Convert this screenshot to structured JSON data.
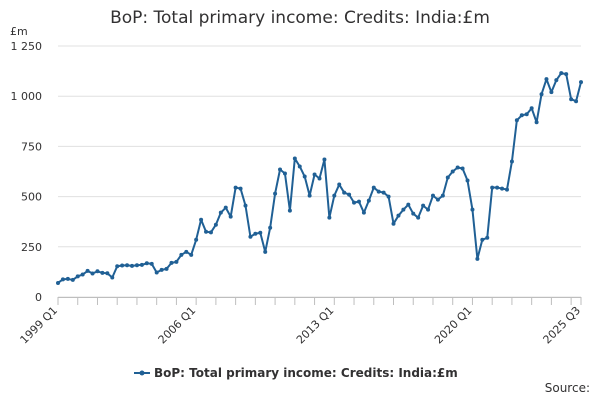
{
  "chart_data": {
    "type": "line",
    "title": "BoP: Total primary income: Credits: India:£m",
    "unit_label": "£m",
    "source_label": "Source:",
    "xlabel": "",
    "ylabel": "",
    "ylim": [
      0,
      1250
    ],
    "yticks": [
      0,
      250,
      500,
      750,
      1000,
      1250
    ],
    "ytick_labels": [
      "0",
      "250",
      "500",
      "750",
      "1 000",
      "1 250"
    ],
    "xtick_labels": [
      "1999 Q1",
      "2006 Q1",
      "2013 Q1",
      "2020 Q1",
      "2025 Q3"
    ],
    "xtick_positions": [
      "1999 Q1",
      "2006 Q1",
      "2013 Q1",
      "2020 Q1",
      "2025 Q3"
    ],
    "grid": true,
    "legend_position": "bottom",
    "color": "#206095",
    "series": [
      {
        "name": "BoP: Total primary income: Credits: India:£m",
        "x": [
          "1999 Q1",
          "1999 Q2",
          "1999 Q3",
          "1999 Q4",
          "2000 Q1",
          "2000 Q2",
          "2000 Q3",
          "2000 Q4",
          "2001 Q1",
          "2001 Q2",
          "2001 Q3",
          "2001 Q4",
          "2002 Q1",
          "2002 Q2",
          "2002 Q3",
          "2002 Q4",
          "2003 Q1",
          "2003 Q2",
          "2003 Q3",
          "2003 Q4",
          "2004 Q1",
          "2004 Q2",
          "2004 Q3",
          "2004 Q4",
          "2005 Q1",
          "2005 Q2",
          "2005 Q3",
          "2005 Q4",
          "2006 Q1",
          "2006 Q2",
          "2006 Q3",
          "2006 Q4",
          "2007 Q1",
          "2007 Q2",
          "2007 Q3",
          "2007 Q4",
          "2008 Q1",
          "2008 Q2",
          "2008 Q3",
          "2008 Q4",
          "2009 Q1",
          "2009 Q2",
          "2009 Q3",
          "2009 Q4",
          "2010 Q1",
          "2010 Q2",
          "2010 Q3",
          "2010 Q4",
          "2011 Q1",
          "2011 Q2",
          "2011 Q3",
          "2011 Q4",
          "2012 Q1",
          "2012 Q2",
          "2012 Q3",
          "2012 Q4",
          "2013 Q1",
          "2013 Q2",
          "2013 Q3",
          "2013 Q4",
          "2014 Q1",
          "2014 Q2",
          "2014 Q3",
          "2014 Q4",
          "2015 Q1",
          "2015 Q2",
          "2015 Q3",
          "2015 Q4",
          "2016 Q1",
          "2016 Q2",
          "2016 Q3",
          "2016 Q4",
          "2017 Q1",
          "2017 Q2",
          "2017 Q3",
          "2017 Q4",
          "2018 Q1",
          "2018 Q2",
          "2018 Q3",
          "2018 Q4",
          "2019 Q1",
          "2019 Q2",
          "2019 Q3",
          "2019 Q4",
          "2020 Q1",
          "2020 Q2",
          "2020 Q3",
          "2020 Q4",
          "2021 Q1",
          "2021 Q2",
          "2021 Q3",
          "2021 Q4",
          "2022 Q1",
          "2022 Q2",
          "2022 Q3",
          "2022 Q4",
          "2023 Q1",
          "2023 Q2",
          "2023 Q3",
          "2023 Q4",
          "2024 Q1",
          "2024 Q2",
          "2024 Q3",
          "2024 Q4",
          "2025 Q1",
          "2025 Q2",
          "2025 Q3"
        ],
        "values": [
          70,
          88,
          90,
          85,
          103,
          112,
          130,
          117,
          128,
          120,
          118,
          97,
          153,
          157,
          158,
          155,
          158,
          160,
          168,
          165,
          122,
          135,
          140,
          170,
          175,
          210,
          225,
          210,
          285,
          385,
          325,
          322,
          360,
          420,
          445,
          400,
          545,
          540,
          455,
          300,
          315,
          320,
          225,
          345,
          515,
          635,
          615,
          430,
          690,
          650,
          600,
          505,
          610,
          590,
          685,
          395,
          505,
          560,
          520,
          510,
          470,
          475,
          420,
          480,
          545,
          525,
          520,
          500,
          365,
          405,
          435,
          460,
          415,
          395,
          455,
          435,
          505,
          485,
          505,
          595,
          625,
          645,
          640,
          580,
          435,
          190,
          285,
          295,
          545,
          545,
          540,
          535,
          675,
          880,
          905,
          910,
          940,
          870,
          1010,
          1085,
          1020,
          1080,
          1115,
          1110,
          985,
          975,
          1070
        ]
      }
    ]
  }
}
